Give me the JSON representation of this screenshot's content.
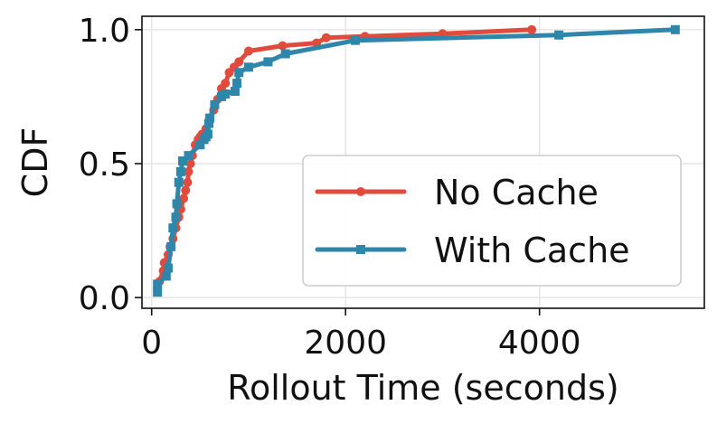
{
  "chart_data": {
    "type": "line",
    "title": "",
    "xlabel": "Rollout Time (seconds)",
    "ylabel": "CDF",
    "xlim": [
      -100,
      5700
    ],
    "ylim": [
      -0.04,
      1.05
    ],
    "xticks": [
      0,
      2000,
      4000
    ],
    "xtick_labels": [
      "0",
      "2000",
      "4000"
    ],
    "yticks": [
      0.0,
      0.5,
      1.0
    ],
    "ytick_labels": [
      "0.0",
      "0.5",
      "1.0"
    ],
    "grid": true,
    "legend_position": "lower-right",
    "series": [
      {
        "name": "No Cache",
        "color": "#e24a3b",
        "marker": "circle",
        "x": [
          60,
          80,
          120,
          130,
          170,
          190,
          220,
          250,
          280,
          300,
          330,
          350,
          370,
          380,
          400,
          420,
          450,
          480,
          500,
          520,
          560,
          600,
          640,
          680,
          720,
          760,
          800,
          850,
          900,
          1000,
          1350,
          1700,
          1800,
          2200,
          3000,
          3920
        ],
        "y": [
          0.03,
          0.06,
          0.1,
          0.13,
          0.16,
          0.19,
          0.22,
          0.26,
          0.3,
          0.33,
          0.37,
          0.4,
          0.43,
          0.47,
          0.5,
          0.53,
          0.57,
          0.59,
          0.6,
          0.61,
          0.63,
          0.67,
          0.7,
          0.74,
          0.78,
          0.8,
          0.84,
          0.86,
          0.88,
          0.92,
          0.94,
          0.95,
          0.97,
          0.975,
          0.985,
          1.0
        ]
      },
      {
        "name": "With Cache",
        "color": "#2e86ab",
        "marker": "square",
        "x": [
          60,
          60,
          150,
          170,
          200,
          220,
          250,
          260,
          280,
          300,
          320,
          380,
          500,
          540,
          560,
          580,
          590,
          600,
          650,
          720,
          760,
          860,
          880,
          900,
          1000,
          1200,
          1380,
          2100,
          4200,
          5400
        ],
        "y": [
          0.02,
          0.05,
          0.08,
          0.11,
          0.19,
          0.26,
          0.3,
          0.35,
          0.43,
          0.47,
          0.51,
          0.53,
          0.57,
          0.59,
          0.6,
          0.61,
          0.65,
          0.67,
          0.72,
          0.75,
          0.76,
          0.77,
          0.8,
          0.84,
          0.86,
          0.88,
          0.91,
          0.96,
          0.98,
          1.0
        ]
      }
    ]
  }
}
